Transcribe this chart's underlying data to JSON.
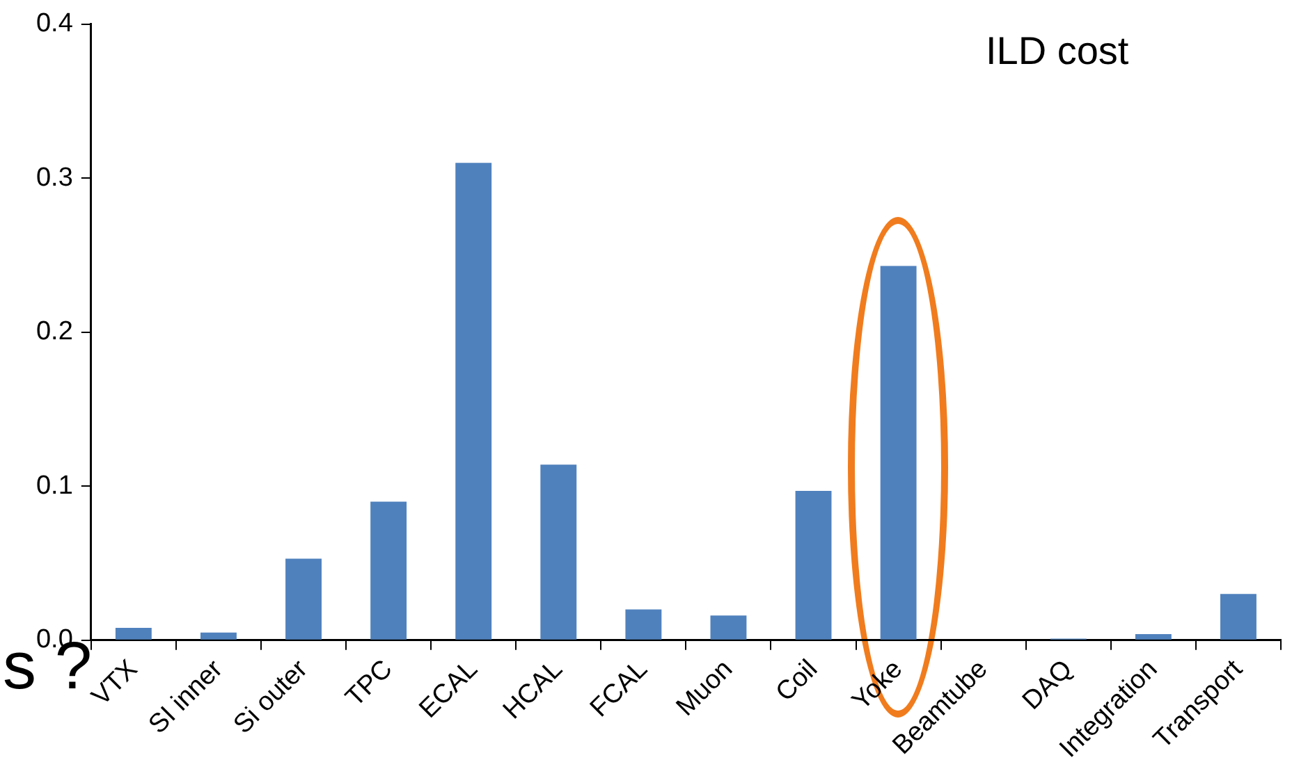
{
  "chart_data": {
    "type": "bar",
    "title": "ILD cost",
    "categories": [
      "VTX",
      "SI inner",
      "Si outer",
      "TPC",
      "ECAL",
      "HCAL",
      "FCAL",
      "Muon",
      "Coil",
      "Yoke",
      "Beamtube",
      "DAQ",
      "Integration",
      "Transport"
    ],
    "values": [
      0.008,
      0.005,
      0.053,
      0.09,
      0.31,
      0.114,
      0.02,
      0.016,
      0.097,
      0.243,
      0,
      0.001,
      0.004,
      0.03
    ],
    "color": "#4f81bd",
    "ylim": [
      0,
      0.4
    ],
    "yticks": [
      {
        "value": 0,
        "label": "0.0"
      },
      {
        "value": 0.1,
        "label": "0.1"
      },
      {
        "value": 0.2,
        "label": "0.2"
      },
      {
        "value": 0.3,
        "label": "0.3"
      },
      {
        "value": 0.4,
        "label": "0.4"
      }
    ],
    "grid": false,
    "legend": false,
    "annotations": [
      "s ?"
    ]
  }
}
